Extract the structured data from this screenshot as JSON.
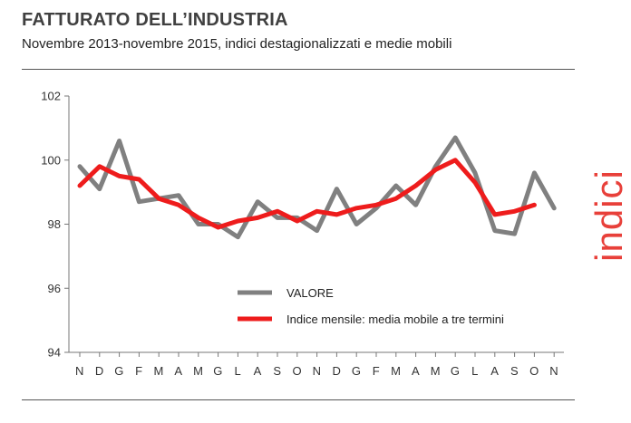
{
  "header": {
    "title": "FATTURATO DELL’INDUSTRIA",
    "subtitle": "Novembre 2013-novembre 2015, indici destagionalizzati e medie mobili"
  },
  "side_label": "indici",
  "colors": {
    "valore": "#808080",
    "media": "#ee1c1c",
    "accent": "#e8403a"
  },
  "chart_data": {
    "type": "line",
    "categories": [
      "N",
      "D",
      "G",
      "F",
      "M",
      "A",
      "M",
      "G",
      "L",
      "A",
      "S",
      "O",
      "N",
      "D",
      "G",
      "F",
      "M",
      "A",
      "M",
      "G",
      "L",
      "A",
      "S",
      "O",
      "N"
    ],
    "ylim": [
      94,
      102
    ],
    "yticks": [
      94,
      96,
      98,
      100,
      102
    ],
    "grid": false,
    "legend": "center-bottom",
    "series": [
      {
        "name": "VALORE",
        "color": "#808080",
        "values": [
          99.8,
          99.1,
          100.6,
          98.7,
          98.8,
          98.9,
          98.0,
          98.0,
          97.6,
          98.7,
          98.2,
          98.2,
          97.8,
          99.1,
          98.0,
          98.5,
          99.2,
          98.6,
          99.8,
          100.7,
          99.6,
          97.8,
          97.7,
          99.6,
          98.5
        ]
      },
      {
        "name": "Indice mensile: media mobile a tre termini",
        "color": "#ee1c1c",
        "values": [
          99.2,
          99.8,
          99.5,
          99.4,
          98.8,
          98.6,
          98.2,
          97.9,
          98.1,
          98.2,
          98.4,
          98.1,
          98.4,
          98.3,
          98.5,
          98.6,
          98.8,
          99.2,
          99.7,
          100.0,
          99.3,
          98.3,
          98.4,
          98.6,
          null
        ]
      }
    ]
  }
}
